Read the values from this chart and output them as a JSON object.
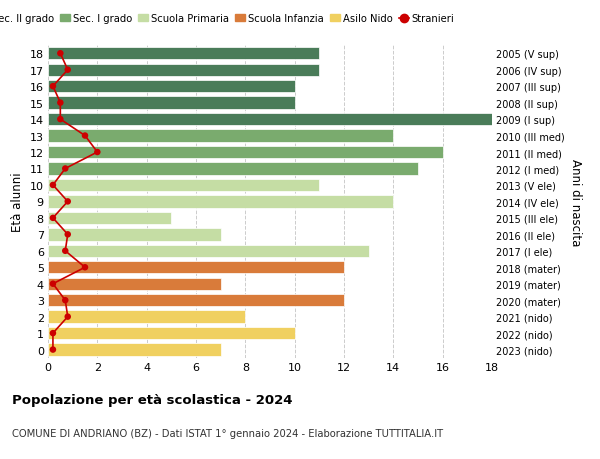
{
  "ages": [
    18,
    17,
    16,
    15,
    14,
    13,
    12,
    11,
    10,
    9,
    8,
    7,
    6,
    5,
    4,
    3,
    2,
    1,
    0
  ],
  "years": [
    "2005 (V sup)",
    "2006 (IV sup)",
    "2007 (III sup)",
    "2008 (II sup)",
    "2009 (I sup)",
    "2010 (III med)",
    "2011 (II med)",
    "2012 (I med)",
    "2013 (V ele)",
    "2014 (IV ele)",
    "2015 (III ele)",
    "2016 (II ele)",
    "2017 (I ele)",
    "2018 (mater)",
    "2019 (mater)",
    "2020 (mater)",
    "2021 (nido)",
    "2022 (nido)",
    "2023 (nido)"
  ],
  "bar_values": [
    11,
    11,
    10,
    10,
    18,
    14,
    16,
    15,
    11,
    14,
    5,
    7,
    13,
    12,
    7,
    12,
    8,
    10,
    7
  ],
  "bar_colors": [
    "#4a7c59",
    "#4a7c59",
    "#4a7c59",
    "#4a7c59",
    "#4a7c59",
    "#7aab6e",
    "#7aab6e",
    "#7aab6e",
    "#c5dda4",
    "#c5dda4",
    "#c5dda4",
    "#c5dda4",
    "#c5dda4",
    "#d97b3a",
    "#d97b3a",
    "#d97b3a",
    "#f0d060",
    "#f0d060",
    "#f0d060"
  ],
  "stranieri_x": [
    0.5,
    0.8,
    0.2,
    0.5,
    0.5,
    1.5,
    2.0,
    0.7,
    0.2,
    0.8,
    0.2,
    0.8,
    0.7,
    1.5,
    0.2,
    0.7,
    0.8,
    0.2,
    0.2
  ],
  "legend_labels": [
    "Sec. II grado",
    "Sec. I grado",
    "Scuola Primaria",
    "Scuola Infanzia",
    "Asilo Nido",
    "Stranieri"
  ],
  "legend_colors": [
    "#4a7c59",
    "#7aab6e",
    "#c5dda4",
    "#d97b3a",
    "#f0d060",
    "#cc0000"
  ],
  "xlim": [
    0,
    18
  ],
  "ylim": [
    -0.5,
    18.5
  ],
  "ylabel_left": "Età alunni",
  "ylabel_right": "Anni di nascita",
  "title_main": "Popolazione per età scolastica - 2024",
  "title_sub": "COMUNE DI ANDRIANO (BZ) - Dati ISTAT 1° gennaio 2024 - Elaborazione TUTTITALIA.IT",
  "bg_color": "#ffffff",
  "grid_color": "#cccccc",
  "bar_height": 0.75
}
